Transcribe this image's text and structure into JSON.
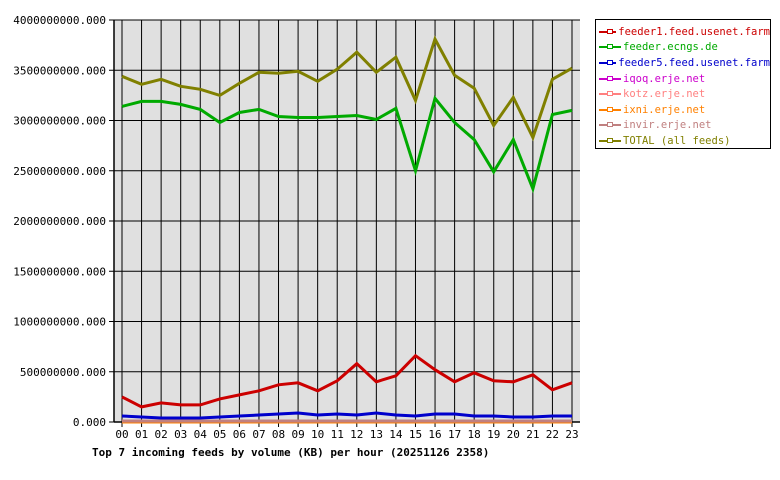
{
  "chart_data": {
    "type": "line",
    "title": "Top 7 incoming feeds by volume (KB) per hour (20251126 2358)",
    "xlabel": "",
    "ylabel": "",
    "ylim": [
      0,
      4000000000
    ],
    "grid": true,
    "legend_position": "right",
    "y_ticks": [
      "0.000",
      "500000000.000",
      "1000000000.000",
      "1500000000.000",
      "2000000000.000",
      "2500000000.000",
      "3000000000.000",
      "3500000000.000",
      "4000000000.000"
    ],
    "categories": [
      "00",
      "01",
      "02",
      "03",
      "04",
      "05",
      "06",
      "07",
      "08",
      "09",
      "10",
      "11",
      "12",
      "13",
      "14",
      "15",
      "16",
      "17",
      "18",
      "19",
      "20",
      "21",
      "22",
      "23"
    ],
    "series": [
      {
        "name": "feeder1.feed.usenet.farm",
        "color": "#cc0000",
        "values": [
          250000000,
          150000000,
          190000000,
          170000000,
          170000000,
          230000000,
          270000000,
          310000000,
          370000000,
          390000000,
          310000000,
          410000000,
          580000000,
          400000000,
          460000000,
          660000000,
          520000000,
          400000000,
          490000000,
          410000000,
          400000000,
          470000000,
          320000000,
          390000000
        ]
      },
      {
        "name": "feeder.ecngs.de",
        "color": "#00aa00",
        "values": [
          3140000000,
          3190000000,
          3190000000,
          3160000000,
          3110000000,
          2980000000,
          3080000000,
          3110000000,
          3040000000,
          3030000000,
          3030000000,
          3040000000,
          3050000000,
          3010000000,
          3120000000,
          2500000000,
          3220000000,
          2980000000,
          2810000000,
          2490000000,
          2810000000,
          2320000000,
          3060000000,
          3100000000
        ]
      },
      {
        "name": "feeder5.feed.usenet.farm",
        "color": "#0000cc",
        "values": [
          60000000,
          50000000,
          40000000,
          40000000,
          40000000,
          50000000,
          60000000,
          70000000,
          80000000,
          90000000,
          70000000,
          80000000,
          70000000,
          90000000,
          70000000,
          60000000,
          80000000,
          80000000,
          60000000,
          60000000,
          50000000,
          50000000,
          60000000,
          60000000
        ]
      },
      {
        "name": "iqoq.erje.net",
        "color": "#cc00cc",
        "values": [
          0,
          0,
          0,
          0,
          0,
          0,
          0,
          0,
          0,
          0,
          0,
          0,
          0,
          0,
          0,
          0,
          0,
          0,
          0,
          0,
          0,
          0,
          0,
          0
        ]
      },
      {
        "name": "kotz.erje.net",
        "color": "#ff8080",
        "values": [
          0,
          0,
          0,
          0,
          0,
          0,
          0,
          0,
          0,
          0,
          0,
          0,
          0,
          0,
          0,
          0,
          0,
          0,
          0,
          0,
          0,
          0,
          0,
          0
        ]
      },
      {
        "name": "ixni.erje.net",
        "color": "#ff8000",
        "values": [
          0,
          0,
          0,
          0,
          0,
          0,
          0,
          0,
          0,
          0,
          0,
          0,
          0,
          0,
          0,
          0,
          0,
          0,
          0,
          0,
          0,
          0,
          0,
          0
        ]
      },
      {
        "name": "invir.erje.net",
        "color": "#c08080",
        "values": [
          10000000,
          10000000,
          10000000,
          10000000,
          10000000,
          10000000,
          10000000,
          10000000,
          10000000,
          10000000,
          10000000,
          10000000,
          10000000,
          10000000,
          10000000,
          10000000,
          10000000,
          10000000,
          10000000,
          10000000,
          10000000,
          10000000,
          10000000,
          10000000
        ]
      },
      {
        "name": "TOTAL (all feeds)",
        "color": "#808000",
        "values": [
          3440000000,
          3360000000,
          3410000000,
          3340000000,
          3310000000,
          3250000000,
          3370000000,
          3480000000,
          3470000000,
          3490000000,
          3390000000,
          3510000000,
          3680000000,
          3480000000,
          3630000000,
          3200000000,
          3810000000,
          3450000000,
          3320000000,
          2950000000,
          3230000000,
          2830000000,
          3410000000,
          3520000000
        ]
      }
    ]
  },
  "legend": {
    "items": [
      {
        "label": "feeder1.feed.usenet.farm",
        "color": "#cc0000"
      },
      {
        "label": "feeder.ecngs.de",
        "color": "#00aa00"
      },
      {
        "label": "feeder5.feed.usenet.farm",
        "color": "#0000cc"
      },
      {
        "label": "iqoq.erje.net",
        "color": "#cc00cc"
      },
      {
        "label": "kotz.erje.net",
        "color": "#ff8080"
      },
      {
        "label": "ixni.erje.net",
        "color": "#ff8000"
      },
      {
        "label": "invir.erje.net",
        "color": "#c08080"
      },
      {
        "label": "TOTAL (all feeds)",
        "color": "#808000"
      }
    ]
  },
  "colors": {
    "plot_bg": "#e0e0e0",
    "grid": "#000000",
    "axis": "#000000"
  }
}
